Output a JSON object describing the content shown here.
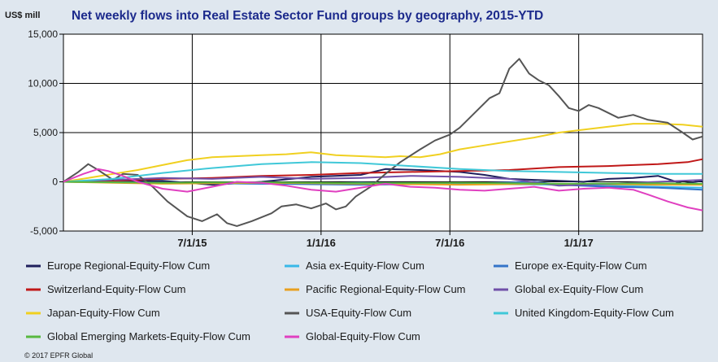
{
  "chart_data": {
    "type": "line",
    "title": "Net weekly flows into Real Estate Sector Fund groups by geography, 2015-YTD",
    "ylabel": "US$ mill",
    "xlabel": "",
    "ylim": [
      -5000,
      15000
    ],
    "y_ticks": [
      "15,000",
      "10,000",
      "5,000",
      "0",
      "-5,000"
    ],
    "y_tick_values": [
      15000,
      10000,
      5000,
      0,
      -5000
    ],
    "x_range_weeks": [
      0,
      129
    ],
    "x_ticks": [
      {
        "label": "7/1/15",
        "week": 26
      },
      {
        "label": "1/1/16",
        "week": 52
      },
      {
        "label": "7/1/16",
        "week": 78
      },
      {
        "label": "1/1/17",
        "week": 104
      }
    ],
    "grid": true,
    "series": [
      {
        "name": "Europe Regional-Equity-Flow Cum",
        "color": "#1f1f5c",
        "points": [
          [
            0,
            0
          ],
          [
            10,
            50
          ],
          [
            20,
            100
          ],
          [
            30,
            -300
          ],
          [
            40,
            0
          ],
          [
            50,
            500
          ],
          [
            60,
            700
          ],
          [
            65,
            1300
          ],
          [
            72,
            1200
          ],
          [
            80,
            1000
          ],
          [
            85,
            700
          ],
          [
            90,
            300
          ],
          [
            95,
            200
          ],
          [
            100,
            100
          ],
          [
            105,
            0
          ],
          [
            110,
            300
          ],
          [
            115,
            400
          ],
          [
            120,
            600
          ],
          [
            125,
            -200
          ],
          [
            129,
            100
          ]
        ]
      },
      {
        "name": "Asia ex-Equity-Flow Cum",
        "color": "#38b8e8",
        "points": [
          [
            0,
            0
          ],
          [
            20,
            -100
          ],
          [
            40,
            -200
          ],
          [
            60,
            -100
          ],
          [
            80,
            -200
          ],
          [
            100,
            -300
          ],
          [
            110,
            -400
          ],
          [
            120,
            -500
          ],
          [
            129,
            -600
          ]
        ]
      },
      {
        "name": "Europe ex-Equity-Flow Cum",
        "color": "#3474c8",
        "points": [
          [
            0,
            0
          ],
          [
            20,
            -100
          ],
          [
            40,
            -200
          ],
          [
            60,
            -300
          ],
          [
            80,
            -200
          ],
          [
            95,
            0
          ],
          [
            100,
            -300
          ],
          [
            110,
            -500
          ],
          [
            120,
            -600
          ],
          [
            129,
            -800
          ]
        ]
      },
      {
        "name": "Switzerland-Equity-Flow Cum",
        "color": "#c01818",
        "points": [
          [
            0,
            0
          ],
          [
            10,
            100
          ],
          [
            20,
            300
          ],
          [
            30,
            400
          ],
          [
            40,
            600
          ],
          [
            50,
            700
          ],
          [
            60,
            900
          ],
          [
            70,
            1000
          ],
          [
            80,
            1100
          ],
          [
            90,
            1200
          ],
          [
            100,
            1500
          ],
          [
            110,
            1600
          ],
          [
            120,
            1800
          ],
          [
            126,
            2000
          ],
          [
            129,
            2300
          ]
        ]
      },
      {
        "name": "Pacific Regional-Equity-Flow Cum",
        "color": "#e8a020",
        "points": [
          [
            0,
            0
          ],
          [
            20,
            -200
          ],
          [
            40,
            -100
          ],
          [
            60,
            -200
          ],
          [
            80,
            -300
          ],
          [
            100,
            -200
          ],
          [
            120,
            -300
          ],
          [
            129,
            -300
          ]
        ]
      },
      {
        "name": "Global ex-Equity-Flow Cum",
        "color": "#7050a8",
        "points": [
          [
            0,
            0
          ],
          [
            10,
            200
          ],
          [
            20,
            400
          ],
          [
            30,
            300
          ],
          [
            40,
            500
          ],
          [
            50,
            300
          ],
          [
            60,
            400
          ],
          [
            70,
            600
          ],
          [
            80,
            500
          ],
          [
            90,
            300
          ],
          [
            100,
            -400
          ],
          [
            110,
            -200
          ],
          [
            120,
            0
          ],
          [
            129,
            200
          ]
        ]
      },
      {
        "name": "Japan-Equity-Flow Cum",
        "color": "#f0d020",
        "points": [
          [
            0,
            0
          ],
          [
            5,
            400
          ],
          [
            10,
            800
          ],
          [
            15,
            1200
          ],
          [
            20,
            1700
          ],
          [
            25,
            2200
          ],
          [
            30,
            2500
          ],
          [
            35,
            2600
          ],
          [
            40,
            2700
          ],
          [
            45,
            2800
          ],
          [
            50,
            3000
          ],
          [
            55,
            2700
          ],
          [
            60,
            2600
          ],
          [
            65,
            2500
          ],
          [
            68,
            2600
          ],
          [
            72,
            2500
          ],
          [
            76,
            2800
          ],
          [
            80,
            3300
          ],
          [
            85,
            3700
          ],
          [
            90,
            4100
          ],
          [
            95,
            4500
          ],
          [
            100,
            5000
          ],
          [
            105,
            5300
          ],
          [
            110,
            5600
          ],
          [
            115,
            5900
          ],
          [
            120,
            5900
          ],
          [
            125,
            5800
          ],
          [
            129,
            5600
          ]
        ]
      },
      {
        "name": "USA-Equity-Flow Cum",
        "color": "#555555",
        "points": [
          [
            0,
            0
          ],
          [
            3,
            1000
          ],
          [
            5,
            1800
          ],
          [
            7,
            1200
          ],
          [
            10,
            200
          ],
          [
            12,
            800
          ],
          [
            15,
            700
          ],
          [
            18,
            -500
          ],
          [
            21,
            -2000
          ],
          [
            25,
            -3500
          ],
          [
            28,
            -4000
          ],
          [
            31,
            -3300
          ],
          [
            33,
            -4200
          ],
          [
            35,
            -4500
          ],
          [
            38,
            -4000
          ],
          [
            42,
            -3200
          ],
          [
            44,
            -2500
          ],
          [
            47,
            -2300
          ],
          [
            50,
            -2700
          ],
          [
            53,
            -2200
          ],
          [
            55,
            -2800
          ],
          [
            57,
            -2500
          ],
          [
            59,
            -1500
          ],
          [
            62,
            -500
          ],
          [
            65,
            800
          ],
          [
            68,
            2000
          ],
          [
            72,
            3300
          ],
          [
            75,
            4200
          ],
          [
            78,
            4800
          ],
          [
            80,
            5500
          ],
          [
            83,
            7000
          ],
          [
            86,
            8500
          ],
          [
            88,
            9000
          ],
          [
            90,
            11500
          ],
          [
            92,
            12500
          ],
          [
            94,
            11000
          ],
          [
            96,
            10300
          ],
          [
            98,
            9800
          ],
          [
            100,
            8700
          ],
          [
            102,
            7500
          ],
          [
            104,
            7200
          ],
          [
            106,
            7800
          ],
          [
            108,
            7500
          ],
          [
            110,
            7000
          ],
          [
            112,
            6500
          ],
          [
            115,
            6800
          ],
          [
            118,
            6300
          ],
          [
            122,
            6000
          ],
          [
            125,
            5000
          ],
          [
            127,
            4300
          ],
          [
            129,
            4600
          ]
        ]
      },
      {
        "name": "United Kingdom-Equity-Flow Cum",
        "color": "#40c8d8",
        "points": [
          [
            0,
            0
          ],
          [
            10,
            300
          ],
          [
            20,
            900
          ],
          [
            30,
            1400
          ],
          [
            40,
            1800
          ],
          [
            50,
            2000
          ],
          [
            60,
            1900
          ],
          [
            70,
            1600
          ],
          [
            80,
            1300
          ],
          [
            90,
            1100
          ],
          [
            100,
            1000
          ],
          [
            110,
            900
          ],
          [
            120,
            800
          ],
          [
            129,
            800
          ]
        ]
      },
      {
        "name": "Global Emerging Markets-Equity-Flow Cum",
        "color": "#58b840",
        "points": [
          [
            0,
            0
          ],
          [
            20,
            -100
          ],
          [
            40,
            -50
          ],
          [
            60,
            -150
          ],
          [
            80,
            -100
          ],
          [
            100,
            -200
          ],
          [
            120,
            -150
          ],
          [
            129,
            -200
          ]
        ]
      },
      {
        "name": "Global-Equity-Flow Cum",
        "color": "#e040c0",
        "points": [
          [
            0,
            0
          ],
          [
            4,
            800
          ],
          [
            7,
            1300
          ],
          [
            9,
            1100
          ],
          [
            12,
            600
          ],
          [
            15,
            0
          ],
          [
            20,
            -700
          ],
          [
            25,
            -1000
          ],
          [
            30,
            -500
          ],
          [
            35,
            0
          ],
          [
            40,
            -100
          ],
          [
            45,
            -400
          ],
          [
            50,
            -800
          ],
          [
            55,
            -1000
          ],
          [
            60,
            -600
          ],
          [
            65,
            -200
          ],
          [
            70,
            -500
          ],
          [
            75,
            -600
          ],
          [
            80,
            -800
          ],
          [
            85,
            -900
          ],
          [
            90,
            -700
          ],
          [
            95,
            -500
          ],
          [
            100,
            -900
          ],
          [
            105,
            -700
          ],
          [
            110,
            -600
          ],
          [
            115,
            -800
          ],
          [
            118,
            -1300
          ],
          [
            122,
            -2000
          ],
          [
            126,
            -2600
          ],
          [
            129,
            -2900
          ]
        ]
      }
    ]
  },
  "copyright": "© 2017 EPFR Global"
}
